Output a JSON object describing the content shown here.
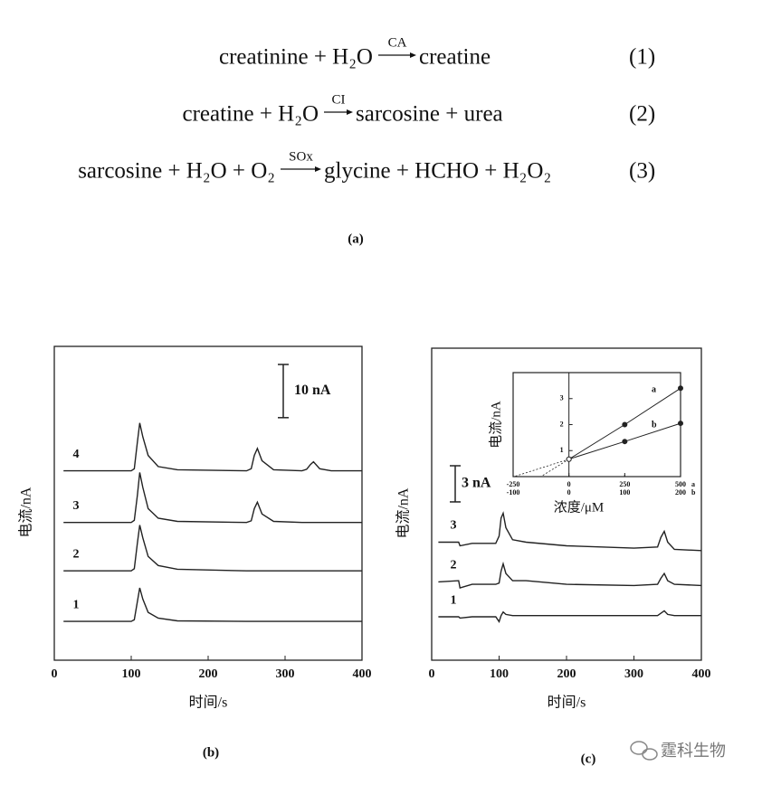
{
  "equations": [
    {
      "reactants": "creatinine + H₂O",
      "enzyme": "CA",
      "products": "creatine",
      "number": "(1)"
    },
    {
      "reactants": "creatine + H₂O",
      "enzyme": "CI",
      "products": "sarcosine + urea",
      "number": "(2)"
    },
    {
      "reactants": "sarcosine + H₂O + O₂",
      "enzyme": "SOx",
      "products": "glycine + HCHO + H₂O₂",
      "number": "(3)"
    }
  ],
  "captions": [
    "(a)",
    "(b)",
    "(c)"
  ],
  "watermark": "霆科生物",
  "chart_data": [
    {
      "type": "line",
      "xlabel": "时间/s",
      "ylabel": "电流/nA",
      "xlim": [
        0,
        400
      ],
      "xticks": [
        0,
        100,
        200,
        300,
        400
      ],
      "ylim": [
        0,
        59
      ],
      "color": "#222222",
      "scale_bar": {
        "value": 10,
        "label": "10 nA"
      },
      "x": [
        12,
        100,
        104,
        108,
        111,
        115,
        122,
        135,
        160,
        250,
        256,
        260,
        264,
        270,
        285,
        322,
        328,
        333,
        337,
        345,
        360,
        400
      ],
      "series": [
        {
          "name": "1",
          "values": [
            7.3,
            7.3,
            7.6,
            11,
            13.6,
            11.5,
            9,
            7.9,
            7.4,
            7.3,
            7.3,
            7.3,
            7.3,
            7.3,
            7.3,
            7.3,
            7.3,
            7.3,
            7.3,
            7.3,
            7.3,
            7.3
          ]
        },
        {
          "name": "2",
          "values": [
            16.8,
            16.8,
            17.2,
            22,
            25.4,
            23,
            19.5,
            17.8,
            17.1,
            16.8,
            16.8,
            16.8,
            16.8,
            16.8,
            16.8,
            16.8,
            16.8,
            16.8,
            16.8,
            16.8,
            16.8,
            16.8
          ]
        },
        {
          "name": "3",
          "values": [
            25.9,
            25.9,
            26.3,
            31,
            35.3,
            32.5,
            28.5,
            26.7,
            26.1,
            25.9,
            26.2,
            28.5,
            29.7,
            27.5,
            26.1,
            25.9,
            25.9,
            25.9,
            25.9,
            25.9,
            25.9,
            25.9
          ]
        },
        {
          "name": "4",
          "values": [
            35.6,
            35.6,
            36,
            41,
            44.6,
            42,
            38.5,
            36.4,
            35.8,
            35.6,
            36,
            38.5,
            39.8,
            37.5,
            35.8,
            35.6,
            35.9,
            36.8,
            37.3,
            36,
            35.6,
            35.6
          ]
        }
      ]
    },
    {
      "type": "line",
      "xlabel": "时间/s",
      "ylabel": "电流/nA",
      "xlim": [
        0,
        400
      ],
      "xticks": [
        0,
        100,
        200,
        300,
        400
      ],
      "ylim": [
        0,
        25.9
      ],
      "color": "#222222",
      "scale_bar": {
        "value": 3,
        "label": "3 nA"
      },
      "x": [
        10,
        40,
        42,
        60,
        95,
        100,
        103,
        106,
        110,
        120,
        140,
        200,
        300,
        335,
        340,
        345,
        350,
        360,
        400
      ],
      "series": [
        {
          "name": "1",
          "values": [
            3.6,
            3.6,
            3.5,
            3.6,
            3.6,
            3.2,
            3.7,
            4.0,
            3.8,
            3.7,
            3.7,
            3.7,
            3.7,
            3.7,
            3.9,
            4.1,
            3.8,
            3.7,
            3.7
          ]
        },
        {
          "name": "2",
          "values": [
            6.5,
            6.6,
            6.0,
            6.3,
            6.3,
            6.4,
            7.4,
            8.0,
            7.2,
            6.6,
            6.6,
            6.3,
            6.2,
            6.3,
            6.8,
            7.2,
            6.6,
            6.3,
            6.2
          ]
        },
        {
          "name": "3",
          "values": [
            9.8,
            9.8,
            9.5,
            9.7,
            9.7,
            10.3,
            11.8,
            12.2,
            11.0,
            10.0,
            9.8,
            9.5,
            9.3,
            9.4,
            10.2,
            10.7,
            9.8,
            9.2,
            9.1
          ]
        }
      ]
    },
    {
      "type": "scatter",
      "xlabel": "浓度/μM",
      "ylabel": "电流/nA",
      "xlim": [
        -250,
        500
      ],
      "xticks": [
        -250,
        0,
        250,
        500
      ],
      "x2lim": [
        -100,
        200
      ],
      "x2ticks": [
        -100,
        0,
        100,
        200
      ],
      "ylim": [
        0,
        4
      ],
      "yticks": [
        1,
        2,
        3
      ],
      "color": "#222222",
      "series": [
        {
          "name": "a",
          "x": [
            0,
            250,
            500
          ],
          "values": [
            0.67,
            2.0,
            3.4
          ]
        },
        {
          "name": "b",
          "axis": "x2",
          "x": [
            0,
            100,
            200
          ],
          "values": [
            0.67,
            1.35,
            2.05
          ]
        }
      ]
    }
  ]
}
